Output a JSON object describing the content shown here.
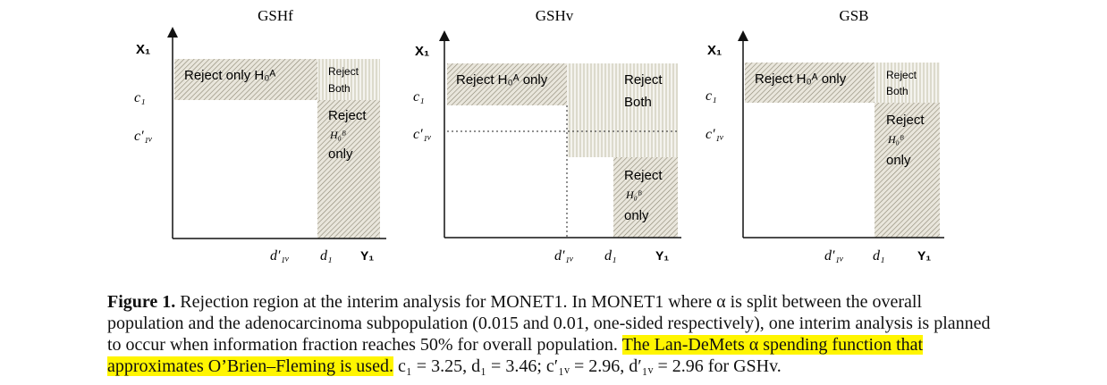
{
  "figure": {
    "panels": [
      {
        "title": "GSHf",
        "x_axis_label": "Y₁",
        "y_axis_label": "X₁",
        "y_ticks": [
          "c₁",
          "c′₁ᵥ"
        ],
        "x_ticks": [
          "d′₁ᵥ",
          "d₁"
        ],
        "regions": [
          "Reject only H₀ᴬ",
          "Reject Both",
          "Reject H₀ᴮ only"
        ]
      },
      {
        "title": "GSHv",
        "x_axis_label": "Y₁",
        "y_axis_label": "X₁",
        "y_ticks": [
          "c₁",
          "c′₁ᵥ"
        ],
        "x_ticks": [
          "d′₁ᵥ",
          "d₁"
        ],
        "regions": [
          "Reject H₀ᴬ only",
          "Reject Both",
          "Reject H₀ᴮ only"
        ]
      },
      {
        "title": "GSB",
        "x_axis_label": "Y₁",
        "y_axis_label": "X₁",
        "y_ticks": [
          "c₁",
          "c′₁ᵥ"
        ],
        "x_ticks": [
          "d′₁ᵥ",
          "d₁"
        ],
        "regions": [
          "Reject H₀ᴬ only",
          "Reject Both",
          "Reject H₀ᴮ only"
        ]
      }
    ]
  },
  "caption": {
    "label": "Figure 1.",
    "text_plain": "Rejection region at the interim analysis for MONET1. In MONET1 where α is split between the overall population and the adenocarcinoma subpopulation (0.015 and 0.01, one-sided respectively), one interim analysis is planned to occur when information fraction reaches 50% for overall population.",
    "text_highlight": "The Lan-DeMets α spending function that approximates O’Brien–Fleming is used.",
    "text_tail": "c₁ = 3.25, d₁ = 3.46; c′₁ᵥ = 2.96, d′₁ᵥ = 2.96 for GSHv."
  }
}
